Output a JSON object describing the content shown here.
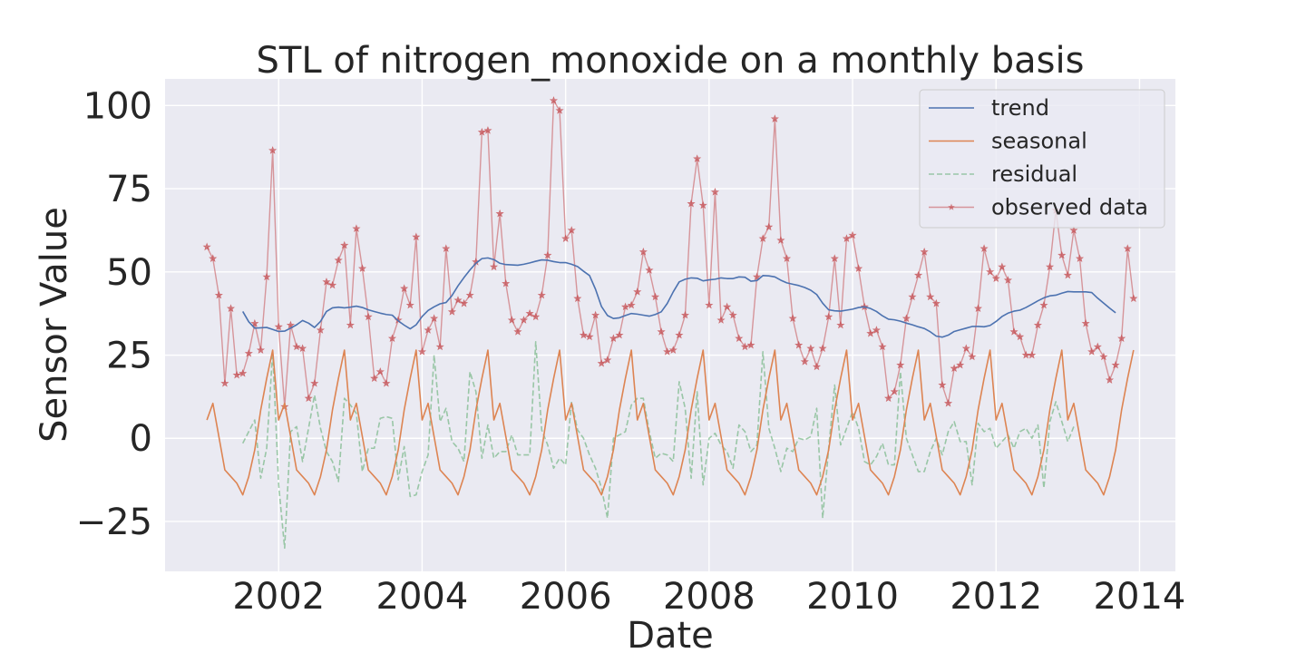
{
  "chart_data": {
    "type": "line",
    "title": "STL of nitrogen_monoxide on a monthly basis",
    "xlabel": "Date",
    "ylabel": "Sensor Value",
    "xlim": [
      "2000-06-01",
      "2014-07-01"
    ],
    "ylim": [
      -40,
      108
    ],
    "x_ticks": [
      "2002",
      "2004",
      "2006",
      "2008",
      "2010",
      "2012",
      "2014"
    ],
    "y_ticks": [
      -25,
      0,
      25,
      50,
      75,
      100
    ],
    "y_tick_labels": [
      "−25",
      "0",
      "25",
      "50",
      "75",
      "100"
    ],
    "grid": true,
    "legend_position": "top-right",
    "start_month": "2001-01",
    "series": [
      {
        "name": "trend",
        "color": "#4c72b0",
        "style": "solid",
        "offset": 6,
        "values": [
          38.1,
          35.0,
          33.1,
          33.2,
          33.3,
          32.7,
          32.1,
          32.2,
          33.1,
          34.1,
          35.4,
          34.6,
          33.3,
          35.1,
          38.1,
          39.2,
          39.4,
          39.2,
          39.4,
          39.7,
          39.3,
          38.6,
          38.1,
          37.6,
          37.2,
          37.0,
          35.3,
          34.0,
          32.9,
          34.1,
          36.6,
          38.4,
          39.5,
          40.4,
          40.8,
          42.9,
          45.8,
          48.3,
          50.6,
          52.6,
          54.0,
          54.2,
          53.7,
          52.6,
          52.2,
          52.1,
          52.0,
          52.3,
          52.7,
          53.2,
          53.6,
          53.5,
          53.1,
          52.8,
          52.8,
          52.3,
          51.6,
          50.2,
          48.9,
          44.8,
          39.6,
          36.9,
          36.0,
          36.2,
          36.9,
          37.5,
          37.3,
          37.0,
          36.7,
          37.2,
          38.0,
          40.5,
          44.0,
          47.0,
          47.8,
          48.2,
          48.1,
          47.3,
          47.6,
          47.8,
          48.2,
          48.0,
          48.0,
          48.5,
          48.4,
          47.2,
          47.4,
          48.9,
          48.8,
          48.5,
          47.5,
          46.7,
          46.3,
          45.9,
          45.3,
          44.5,
          43.2,
          40.6,
          38.6,
          38.3,
          38.2,
          38.5,
          38.8,
          39.3,
          39.5,
          39.0,
          38.1,
          36.8,
          35.8,
          35.6,
          35.2,
          34.6,
          34.1,
          33.5,
          33.0,
          32.0,
          30.7,
          30.4,
          31.0,
          32.1,
          32.6,
          33.1,
          33.6,
          33.6,
          33.5,
          33.9,
          35.1,
          36.6,
          37.6,
          38.2,
          38.5,
          39.3,
          40.3,
          41.3,
          42.2,
          42.8,
          43.0,
          43.6,
          44.1,
          44.0,
          44.0,
          44.0,
          43.8,
          42.1,
          40.6,
          39.1,
          37.7
        ]
      },
      {
        "name": "seasonal",
        "color": "#dd8452",
        "style": "solid",
        "offset": 0,
        "values": [
          5.5,
          10.5,
          0.5,
          -9.5,
          -11.5,
          -13.5,
          -17.0,
          -11.5,
          -3.5,
          8.5,
          18.0,
          26.5,
          5.5,
          10.5,
          0.5,
          -9.5,
          -11.5,
          -13.5,
          -17.0,
          -11.5,
          -3.5,
          8.5,
          18.0,
          26.5,
          5.5,
          10.5,
          0.5,
          -9.5,
          -11.5,
          -13.5,
          -17.0,
          -11.5,
          -3.5,
          8.5,
          18.0,
          26.5,
          5.5,
          10.5,
          0.5,
          -9.5,
          -11.5,
          -13.5,
          -17.0,
          -11.5,
          -3.5,
          8.5,
          18.0,
          26.5,
          5.5,
          10.5,
          0.5,
          -9.5,
          -11.5,
          -13.5,
          -17.0,
          -11.5,
          -3.5,
          8.5,
          18.0,
          26.5,
          5.5,
          10.5,
          0.5,
          -9.5,
          -11.5,
          -13.5,
          -17.0,
          -11.5,
          -3.5,
          8.5,
          18.0,
          26.5,
          5.5,
          10.5,
          0.5,
          -9.5,
          -11.5,
          -13.5,
          -17.0,
          -11.5,
          -3.5,
          8.5,
          18.0,
          26.5,
          5.5,
          10.5,
          0.5,
          -9.5,
          -11.5,
          -13.5,
          -17.0,
          -11.5,
          -3.5,
          8.5,
          18.0,
          26.5,
          5.5,
          10.5,
          0.5,
          -9.5,
          -11.5,
          -13.5,
          -17.0,
          -11.5,
          -3.5,
          8.5,
          18.0,
          26.5,
          5.5,
          10.5,
          0.5,
          -9.5,
          -11.5,
          -13.5,
          -17.0,
          -11.5,
          -3.5,
          8.5,
          18.0,
          26.5,
          5.5,
          10.5,
          0.5,
          -9.5,
          -11.5,
          -13.5,
          -17.0,
          -11.5,
          -3.5,
          8.5,
          18.0,
          26.5,
          5.5,
          10.5,
          0.5,
          -9.5,
          -11.5,
          -13.5,
          -17.0,
          -11.5,
          -3.5,
          8.5,
          18.0,
          26.5,
          5.5,
          10.5,
          0.5,
          -9.5,
          -11.5,
          -13.5,
          -17.0,
          -11.5,
          -3.5,
          8.5,
          18.0,
          26.5
        ]
      },
      {
        "name": "residual",
        "color": "#55a868",
        "style": "dashed",
        "offset": 6,
        "values": [
          -1.5,
          2.0,
          5.5,
          -12.0,
          -3.0,
          26.0,
          -14.0,
          -33.0,
          2.0,
          3.5,
          -7.0,
          3.0,
          13.0,
          3.0,
          -4.0,
          -7.0,
          -13.0,
          12.0,
          10.0,
          7.5,
          -10.0,
          -3.0,
          -3.0,
          6.0,
          6.5,
          6.0,
          -12.5,
          -2.5,
          -17.5,
          -17.0,
          -10.0,
          -5.0,
          25.0,
          5.0,
          9.0,
          -1.0,
          -3.0,
          -7.0,
          20.0,
          14.0,
          -6.0,
          4.0,
          -6.0,
          -4.0,
          -4.0,
          1.0,
          -5.0,
          -5.0,
          -5.0,
          29.0,
          2.5,
          -2.0,
          -9.0,
          -6.0,
          -8.0,
          11.0,
          2.5,
          0.0,
          -5.0,
          -9.0,
          -15.0,
          -24.0,
          0.0,
          1.0,
          2.0,
          10.0,
          12.0,
          12.0,
          2.0,
          -6.0,
          -4.5,
          -5.0,
          -7.0,
          17.0,
          9.0,
          -12.0,
          14.0,
          -14.0,
          0.0,
          1.5,
          -2.0,
          -4.0,
          -9.0,
          4.0,
          2.0,
          -4.0,
          -2.0,
          26.0,
          3.0,
          -3.0,
          -10.0,
          -3.0,
          -4.0,
          0.0,
          -0.5,
          0.5,
          9.0,
          -24.0,
          -3.0,
          16.0,
          -2.0,
          3.0,
          8.0,
          3.0,
          -7.0,
          -8.0,
          -5.5,
          -1.5,
          -8.0,
          -8.0,
          20.0,
          0.0,
          -5.0,
          -10.0,
          -10.0,
          -4.0,
          0.0,
          -5.0,
          2.0,
          5.0,
          -1.0,
          -1.0,
          -14.0,
          4.5,
          2.0,
          3.0,
          -3.0,
          -1.0,
          1.0,
          -3.0,
          2.0,
          3.0,
          0.0,
          4.0,
          -15.0,
          5.0,
          11.0,
          5.0,
          -1.0,
          3.5
        ]
      },
      {
        "name": "observed data",
        "color": "#c44e52",
        "style": "solid",
        "marker": "star",
        "offset": 0,
        "values": [
          57.5,
          54.0,
          43.0,
          16.5,
          39.0,
          19.0,
          19.5,
          25.5,
          34.5,
          26.5,
          48.5,
          86.5,
          33.5,
          9.5,
          34.0,
          27.5,
          27.0,
          12.0,
          16.5,
          32.5,
          47.0,
          46.0,
          53.5,
          58.0,
          34.0,
          63.0,
          51.0,
          36.5,
          18.0,
          20.0,
          16.5,
          30.0,
          35.5,
          45.0,
          40.0,
          60.5,
          26.0,
          32.5,
          36.0,
          27.5,
          57.0,
          38.0,
          41.5,
          40.5,
          43.0,
          53.0,
          92.0,
          92.5,
          51.5,
          67.5,
          46.5,
          35.5,
          32.0,
          35.5,
          37.5,
          36.5,
          43.0,
          55.0,
          101.5,
          98.5,
          60.0,
          62.5,
          42.0,
          31.0,
          30.5,
          37.0,
          22.5,
          23.5,
          30.0,
          31.0,
          39.5,
          40.0,
          44.0,
          56.0,
          50.5,
          42.5,
          32.0,
          26.0,
          26.5,
          31.0,
          37.0,
          70.5,
          84.0,
          70.0,
          40.0,
          74.0,
          35.5,
          39.5,
          37.0,
          30.0,
          27.5,
          28.0,
          48.5,
          60.0,
          63.5,
          96.0,
          59.5,
          54.0,
          36.0,
          28.0,
          23.0,
          27.0,
          21.5,
          27.0,
          36.5,
          54.0,
          34.0,
          60.0,
          61.0,
          51.0,
          39.5,
          31.5,
          32.5,
          27.5,
          12.0,
          14.0,
          22.0,
          36.0,
          42.5,
          49.0,
          56.0,
          42.5,
          40.5,
          16.0,
          10.5,
          21.0,
          22.0,
          27.0,
          24.5,
          39.0,
          57.0,
          50.0,
          48.0,
          51.5,
          47.5,
          32.0,
          30.5,
          25.0,
          25.0,
          34.0,
          40.0,
          51.5,
          68.5,
          55.0,
          49.0,
          62.5,
          54.0,
          34.5,
          26.0,
          27.5,
          24.5,
          17.5,
          22.0,
          30.0,
          57.0,
          42.0
        ]
      }
    ]
  }
}
